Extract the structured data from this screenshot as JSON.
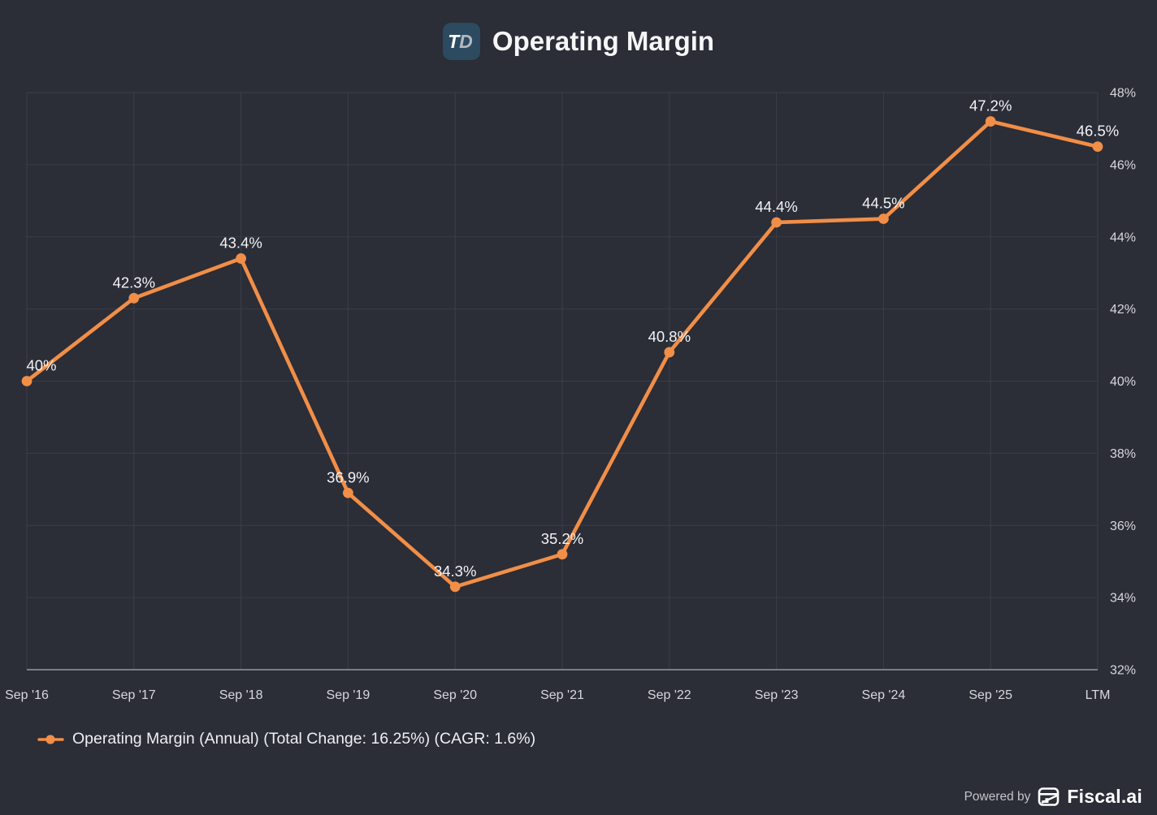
{
  "header": {
    "badge_t": "T",
    "badge_d": "D"
  },
  "chart_data": {
    "type": "line",
    "title": "Operating Margin",
    "categories": [
      "Sep '16",
      "Sep '17",
      "Sep '18",
      "Sep '19",
      "Sep '20",
      "Sep '21",
      "Sep '22",
      "Sep '23",
      "Sep '24",
      "Sep '25",
      "LTM"
    ],
    "values": [
      40,
      42.3,
      43.4,
      36.9,
      34.3,
      35.2,
      40.8,
      44.4,
      44.5,
      47.2,
      46.5
    ],
    "point_labels": [
      "40%",
      "42.3%",
      "43.4%",
      "36.9%",
      "34.3%",
      "35.2%",
      "40.8%",
      "44.4%",
      "44.5%",
      "47.2%",
      "46.5%"
    ],
    "ylim": [
      32,
      48
    ],
    "ytick_step": 2,
    "ytick_labels": [
      "32%",
      "34%",
      "36%",
      "38%",
      "40%",
      "42%",
      "44%",
      "46%",
      "48%"
    ],
    "grid": true,
    "legend": "Operating Margin (Annual) (Total Change: 16.25%) (CAGR: 1.6%)",
    "legend_position": "bottom-left",
    "yaxis_side": "right",
    "colors": {
      "series": "#F18E47",
      "background": "#2b2d37",
      "gridline": "#3b3e48",
      "axis_line": "#97999f",
      "tick_text": "#d8d9dc",
      "point_label_text": "#f3f4f6"
    }
  },
  "footer": {
    "powered_by": "Powered by",
    "brand": "Fiscal.ai"
  }
}
